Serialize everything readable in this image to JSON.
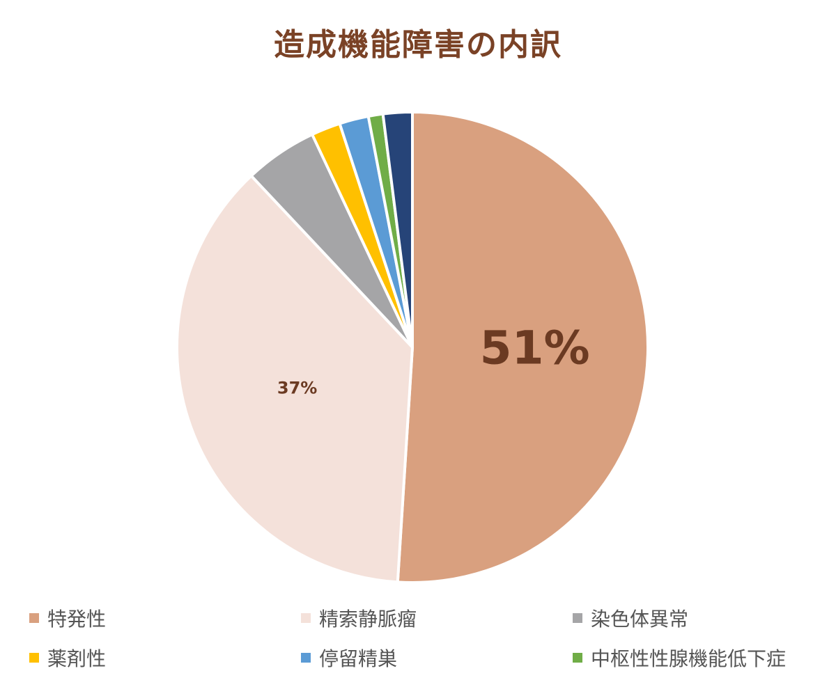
{
  "chart_data": {
    "type": "pie",
    "title": "造成機能障害の内訳",
    "categories": [
      "特発性",
      "精索静脈瘤",
      "染色体異常",
      "薬剤性",
      "停留精巣",
      "中枢性性腺機能低下症",
      ""
    ],
    "values": [
      51,
      37,
      5,
      2,
      2,
      1,
      2
    ],
    "colors": [
      "#d9a07f",
      "#f4e1da",
      "#a5a5a7",
      "#ffc000",
      "#5b9bd5",
      "#70ad47",
      "#264478"
    ],
    "data_labels": [
      "51%",
      "37%",
      "",
      "",
      "",
      "",
      ""
    ],
    "legend_position": "bottom",
    "start_angle": "12 o'clock",
    "direction": "clockwise"
  },
  "legend": [
    {
      "label": "特発性",
      "color": "#d9a07f"
    },
    {
      "label": "精索静脈瘤",
      "color": "#f4e1da"
    },
    {
      "label": "染色体異常",
      "color": "#a5a5a7"
    },
    {
      "label": "薬剤性",
      "color": "#ffc000"
    },
    {
      "label": "停留精巣",
      "color": "#5b9bd5"
    },
    {
      "label": "中枢性性腺機能低下症",
      "color": "#70ad47"
    }
  ]
}
